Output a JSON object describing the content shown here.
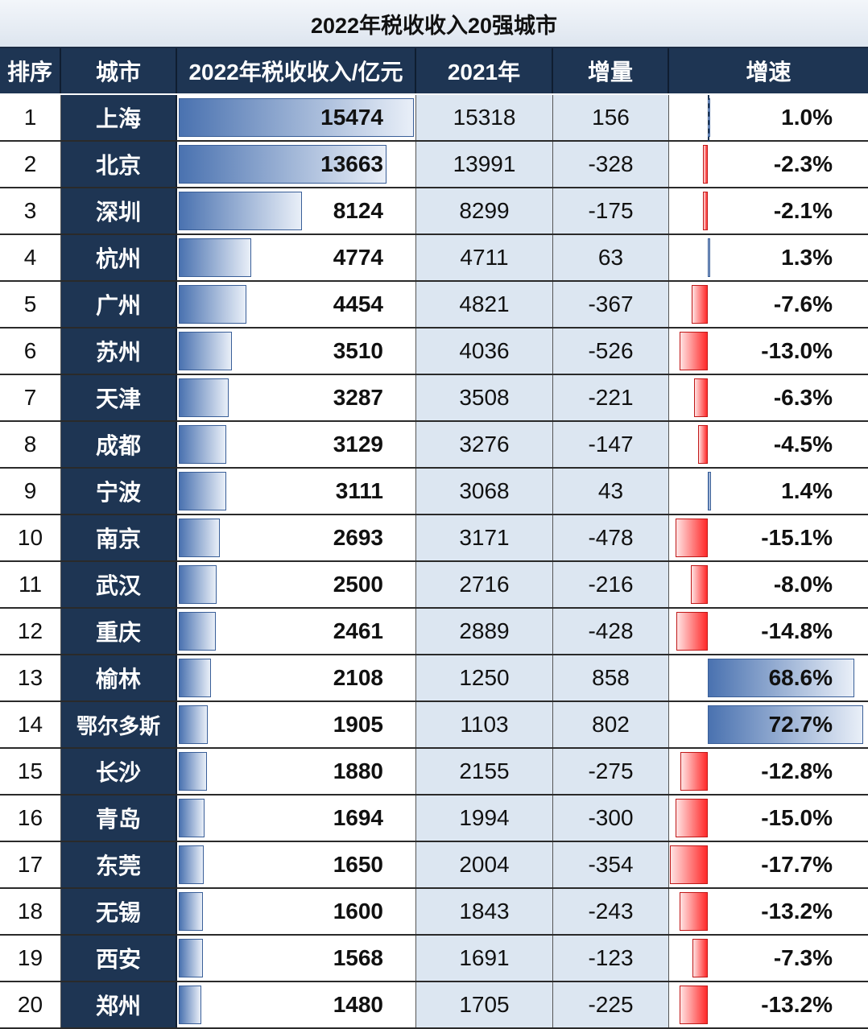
{
  "title": "2022年税收收入20强城市",
  "headers": {
    "rank": "排序",
    "city": "城市",
    "tax2022": "2022年税收收入/亿元",
    "tax2021": "2021年",
    "increase": "增量",
    "growth": "增速"
  },
  "chart_data": {
    "type": "table",
    "title": "2022年税收收入20强城市",
    "columns": [
      "排序",
      "城市",
      "2022年税收收入/亿元",
      "2021年",
      "增量",
      "增速"
    ],
    "rows": [
      {
        "rank": "1",
        "city": "上海",
        "tax2022": 15474,
        "tax2021": 15318,
        "increase": 156,
        "growth": 1.0,
        "growth_label": "1.0%"
      },
      {
        "rank": "2",
        "city": "北京",
        "tax2022": 13663,
        "tax2021": 13991,
        "increase": -328,
        "growth": -2.3,
        "growth_label": "-2.3%"
      },
      {
        "rank": "3",
        "city": "深圳",
        "tax2022": 8124,
        "tax2021": 8299,
        "increase": -175,
        "growth": -2.1,
        "growth_label": "-2.1%"
      },
      {
        "rank": "4",
        "city": "杭州",
        "tax2022": 4774,
        "tax2021": 4711,
        "increase": 63,
        "growth": 1.3,
        "growth_label": "1.3%"
      },
      {
        "rank": "5",
        "city": "广州",
        "tax2022": 4454,
        "tax2021": 4821,
        "increase": -367,
        "growth": -7.6,
        "growth_label": "-7.6%"
      },
      {
        "rank": "6",
        "city": "苏州",
        "tax2022": 3510,
        "tax2021": 4036,
        "increase": -526,
        "growth": -13.0,
        "growth_label": "-13.0%"
      },
      {
        "rank": "7",
        "city": "天津",
        "tax2022": 3287,
        "tax2021": 3508,
        "increase": -221,
        "growth": -6.3,
        "growth_label": "-6.3%"
      },
      {
        "rank": "8",
        "city": "成都",
        "tax2022": 3129,
        "tax2021": 3276,
        "increase": -147,
        "growth": -4.5,
        "growth_label": "-4.5%"
      },
      {
        "rank": "9",
        "city": "宁波",
        "tax2022": 3111,
        "tax2021": 3068,
        "increase": 43,
        "growth": 1.4,
        "growth_label": "1.4%"
      },
      {
        "rank": "10",
        "city": "南京",
        "tax2022": 2693,
        "tax2021": 3171,
        "increase": -478,
        "growth": -15.1,
        "growth_label": "-15.1%"
      },
      {
        "rank": "11",
        "city": "武汉",
        "tax2022": 2500,
        "tax2021": 2716,
        "increase": -216,
        "growth": -8.0,
        "growth_label": "-8.0%"
      },
      {
        "rank": "12",
        "city": "重庆",
        "tax2022": 2461,
        "tax2021": 2889,
        "increase": -428,
        "growth": -14.8,
        "growth_label": "-14.8%"
      },
      {
        "rank": "13",
        "city": "榆林",
        "tax2022": 2108,
        "tax2021": 1250,
        "increase": 858,
        "growth": 68.6,
        "growth_label": "68.6%"
      },
      {
        "rank": "14",
        "city": "鄂尔多斯",
        "tax2022": 1905,
        "tax2021": 1103,
        "increase": 802,
        "growth": 72.7,
        "growth_label": "72.7%"
      },
      {
        "rank": "15",
        "city": "长沙",
        "tax2022": 1880,
        "tax2021": 2155,
        "increase": -275,
        "growth": -12.8,
        "growth_label": "-12.8%"
      },
      {
        "rank": "16",
        "city": "青岛",
        "tax2022": 1694,
        "tax2021": 1994,
        "increase": -300,
        "growth": -15.0,
        "growth_label": "-15.0%"
      },
      {
        "rank": "17",
        "city": "东莞",
        "tax2022": 1650,
        "tax2021": 2004,
        "increase": -354,
        "growth": -17.7,
        "growth_label": "-17.7%"
      },
      {
        "rank": "18",
        "city": "无锡",
        "tax2022": 1600,
        "tax2021": 1843,
        "increase": -243,
        "growth": -13.2,
        "growth_label": "-13.2%"
      },
      {
        "rank": "19",
        "city": "西安",
        "tax2022": 1568,
        "tax2021": 1691,
        "increase": -123,
        "growth": -7.3,
        "growth_label": "-7.3%"
      },
      {
        "rank": "20",
        "city": "郑州",
        "tax2022": 1480,
        "tax2021": 1705,
        "increase": -225,
        "growth": -13.2,
        "growth_label": "-13.2%"
      }
    ],
    "tax2022_bar_max": 15474,
    "growth_bar_max": 72.7,
    "colors": {
      "positive_bar": "#4a72b0",
      "negative_bar": "#ff2a2a",
      "header_bg": "#1e3553",
      "alt_col_bg": "#dce6f1"
    }
  }
}
